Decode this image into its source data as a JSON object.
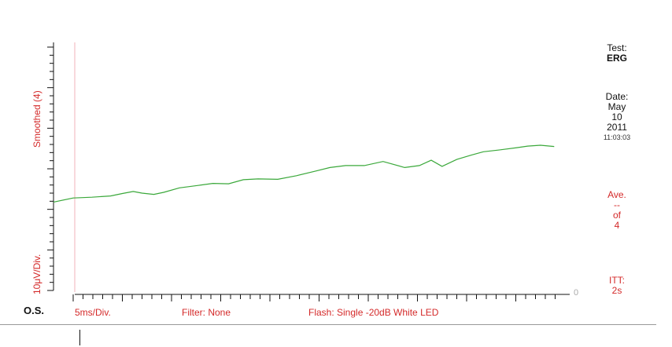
{
  "chart_data": {
    "type": "line",
    "eye": "O.S.",
    "left_labels": {
      "upper": "Smoothed (4)",
      "lower": "10μV/Div."
    },
    "zero_label": "0",
    "x_scale_label": "5ms/Div.",
    "filter_label": "Filter: None",
    "flash_label": "Flash: Single -20dB White LED",
    "test": {
      "label": "Test:",
      "value": "ERG"
    },
    "date": {
      "label": "Date:",
      "month": "May",
      "day": "10",
      "year": "2011",
      "time": "11:03:03"
    },
    "average": {
      "label": "Ave.",
      "count": "--",
      "of": "of",
      "total": "4"
    },
    "itt": {
      "label": "ITT:",
      "value": "2s"
    },
    "xlim": [
      -2,
      50
    ],
    "ylim": [
      -10,
      50
    ],
    "series": [
      {
        "color": "#3aa83a",
        "x": [
          -2.0,
          0.0,
          1.9,
          3.8,
          5.0,
          6.1,
          7.0,
          8.2,
          9.2,
          10.8,
          12.7,
          14.2,
          15.8,
          17.3,
          18.8,
          20.8,
          22.7,
          24.6,
          26.1,
          27.7,
          29.6,
          31.5,
          33.7,
          35.2,
          36.4,
          37.5,
          39.0,
          40.5,
          41.7,
          43.2,
          45.1,
          46.2,
          47.5,
          48.9
        ],
        "y": [
          11.8,
          12.8,
          13.0,
          13.3,
          13.9,
          14.4,
          14.0,
          13.7,
          14.2,
          15.3,
          15.9,
          16.4,
          16.3,
          17.3,
          17.5,
          17.4,
          18.3,
          19.4,
          20.3,
          20.8,
          20.8,
          21.8,
          20.3,
          20.8,
          22.1,
          20.6,
          22.3,
          23.4,
          24.2,
          24.6,
          25.2,
          25.6,
          25.8,
          25.5
        ]
      }
    ]
  }
}
